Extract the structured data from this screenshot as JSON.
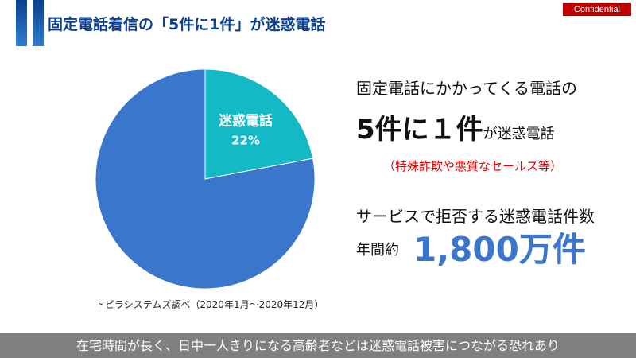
{
  "header": {
    "title": "固定電話着信の「5件に1件」が迷惑電話",
    "badge": "Confidential"
  },
  "chart_data": {
    "type": "pie",
    "slices": [
      {
        "label": "迷惑電話",
        "value": 22,
        "value_label": "22%",
        "color": "#14b9c6"
      },
      {
        "label": "",
        "value": 78,
        "color": "#3a77cc"
      }
    ],
    "source": "トビラシステムズ調べ（2020年1月～2020年12月）"
  },
  "stats": {
    "line1": "固定電話にかかってくる電話の",
    "big": "5件に１件",
    "big_suffix": "が迷惑電話",
    "note": "（特殊詐欺や悪質なセールス等）",
    "line4": "サービスで拒否する迷惑電話件数",
    "annual_label": "年間約",
    "annual_value": "1,800万件"
  },
  "footer": "在宅時間が長く、日中一人きりになる高齢者などは迷惑電話被害につながる恐れあり"
}
